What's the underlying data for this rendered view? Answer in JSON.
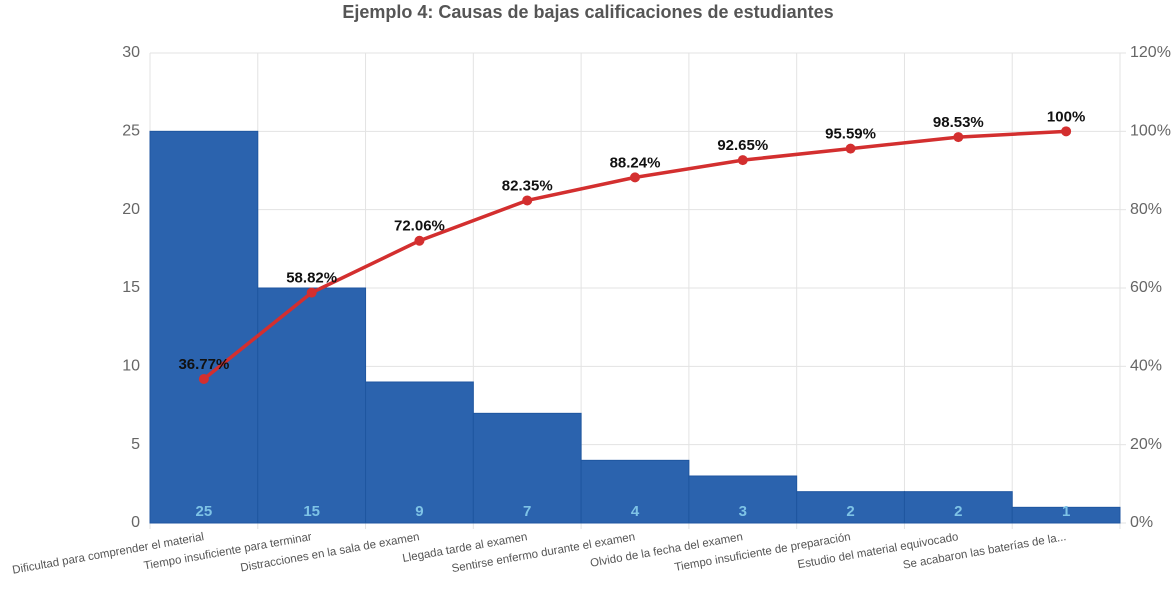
{
  "chart_data": {
    "type": "pareto",
    "title": "Ejemplo 4: Causas de bajas calificaciones de estudiantes",
    "categories": [
      "Dificultad para comprender el material",
      "Tiempo insuficiente para terminar",
      "Distracciones en la sala de examen",
      "Llegada tarde al examen",
      "Sentirse enfermo durante el examen",
      "Olvido de la fecha del examen",
      "Tiempo insuficiente de preparación",
      "Estudio del material equivocado",
      "Se acabaron las baterías de la..."
    ],
    "series": [
      {
        "type": "bar",
        "color": "#2b63ae",
        "label_color": "#7ec3e6",
        "values": [
          25,
          15,
          9,
          7,
          4,
          3,
          2,
          2,
          1
        ]
      },
      {
        "type": "line",
        "axis": "y2",
        "color": "#d32f2f",
        "values": [
          36.77,
          58.82,
          72.06,
          82.35,
          88.24,
          92.65,
          95.59,
          98.53,
          100
        ],
        "value_labels": [
          "36.77%",
          "58.82%",
          "72.06%",
          "82.35%",
          "88.24%",
          "92.65%",
          "95.59%",
          "98.53%",
          "100%"
        ]
      }
    ],
    "ylim": [
      0,
      30
    ],
    "yticks": [
      0,
      5,
      10,
      15,
      20,
      25,
      30
    ],
    "y2lim": [
      0,
      120
    ],
    "y2ticks": [
      {
        "value": 0,
        "label": "0%"
      },
      {
        "value": 20,
        "label": "20%"
      },
      {
        "value": 40,
        "label": "40%"
      },
      {
        "value": 60,
        "label": "60%"
      },
      {
        "value": 80,
        "label": "80%"
      },
      {
        "value": 100,
        "label": "100%"
      },
      {
        "value": 120,
        "label": "120%"
      }
    ],
    "grid": true
  }
}
